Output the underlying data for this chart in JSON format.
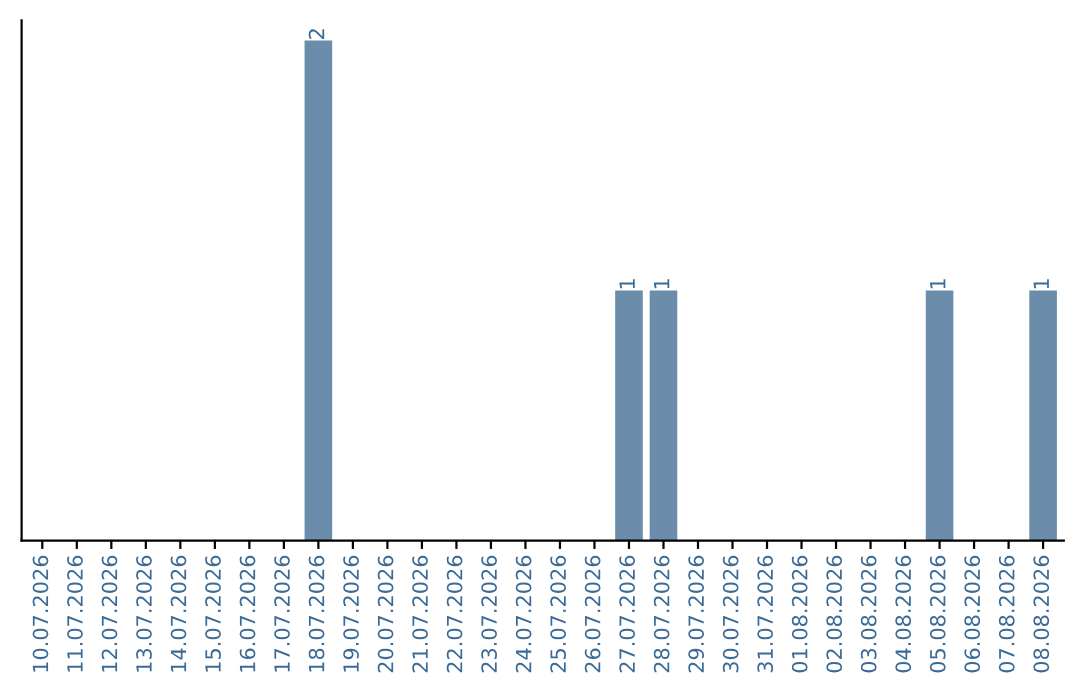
{
  "chart_data": {
    "type": "bar",
    "categories": [
      "10.07.2026",
      "11.07.2026",
      "12.07.2026",
      "13.07.2026",
      "14.07.2026",
      "15.07.2026",
      "16.07.2026",
      "17.07.2026",
      "18.07.2026",
      "19.07.2026",
      "20.07.2026",
      "21.07.2026",
      "22.07.2026",
      "23.07.2026",
      "24.07.2026",
      "25.07.2026",
      "26.07.2026",
      "27.07.2026",
      "28.07.2026",
      "29.07.2026",
      "30.07.2026",
      "31.07.2026",
      "01.08.2026",
      "02.08.2026",
      "03.08.2026",
      "04.08.2026",
      "05.08.2026",
      "06.08.2026",
      "07.08.2026",
      "08.08.2026"
    ],
    "values": [
      0,
      0,
      0,
      0,
      0,
      0,
      0,
      0,
      2,
      0,
      0,
      0,
      0,
      0,
      0,
      0,
      0,
      1,
      1,
      0,
      0,
      0,
      0,
      0,
      0,
      0,
      1,
      0,
      0,
      1
    ],
    "value_labels": [
      null,
      null,
      null,
      null,
      null,
      null,
      null,
      null,
      "2",
      null,
      null,
      null,
      null,
      null,
      null,
      null,
      null,
      "1",
      "1",
      null,
      null,
      null,
      null,
      null,
      null,
      null,
      "1",
      null,
      null,
      "1"
    ],
    "color": "#6b8cab",
    "grid": false,
    "legend": false
  }
}
